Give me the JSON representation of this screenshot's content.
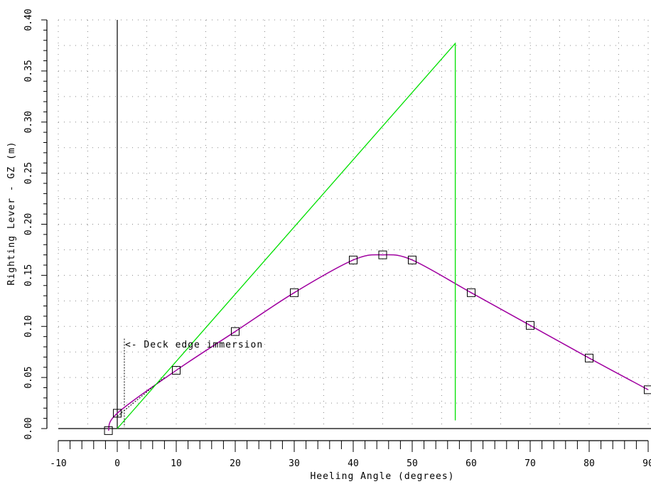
{
  "chart_data": {
    "type": "line",
    "xlabel": "Heeling Angle (degrees)",
    "ylabel": "Righting Lever - GZ (m)",
    "xlim": [
      -10,
      90
    ],
    "ylim": [
      0,
      0.4
    ],
    "grid": true,
    "x_ticks": [
      "-10",
      "0",
      "10",
      "20",
      "30",
      "40",
      "50",
      "60",
      "70",
      "80",
      "90"
    ],
    "y_ticks": [
      "0.00",
      "0.05",
      "0.10",
      "0.15",
      "0.20",
      "0.25",
      "0.30",
      "0.35",
      "0.40"
    ],
    "series": [
      {
        "role": "gz-curve",
        "color": "#a000a0",
        "marker": "square",
        "x": [
          -1.5,
          0,
          10,
          20,
          30,
          40,
          45,
          50,
          60,
          70,
          80,
          90
        ],
        "y": [
          -0.002,
          0.015,
          0.057,
          0.095,
          0.133,
          0.165,
          0.17,
          0.165,
          0.133,
          0.101,
          0.069,
          0.038
        ]
      },
      {
        "role": "initial-gm-line",
        "color": "#00e000",
        "x": [
          0,
          57.3,
          57.3
        ],
        "y": [
          0.0,
          0.377,
          0.008
        ]
      }
    ],
    "annotations": [
      {
        "text": "<- Deck edge immersion",
        "x": 1.2,
        "y": 0.082
      }
    ],
    "deck_edge_angle": 1.2,
    "deck_edge_marker_top": 0.088
  }
}
